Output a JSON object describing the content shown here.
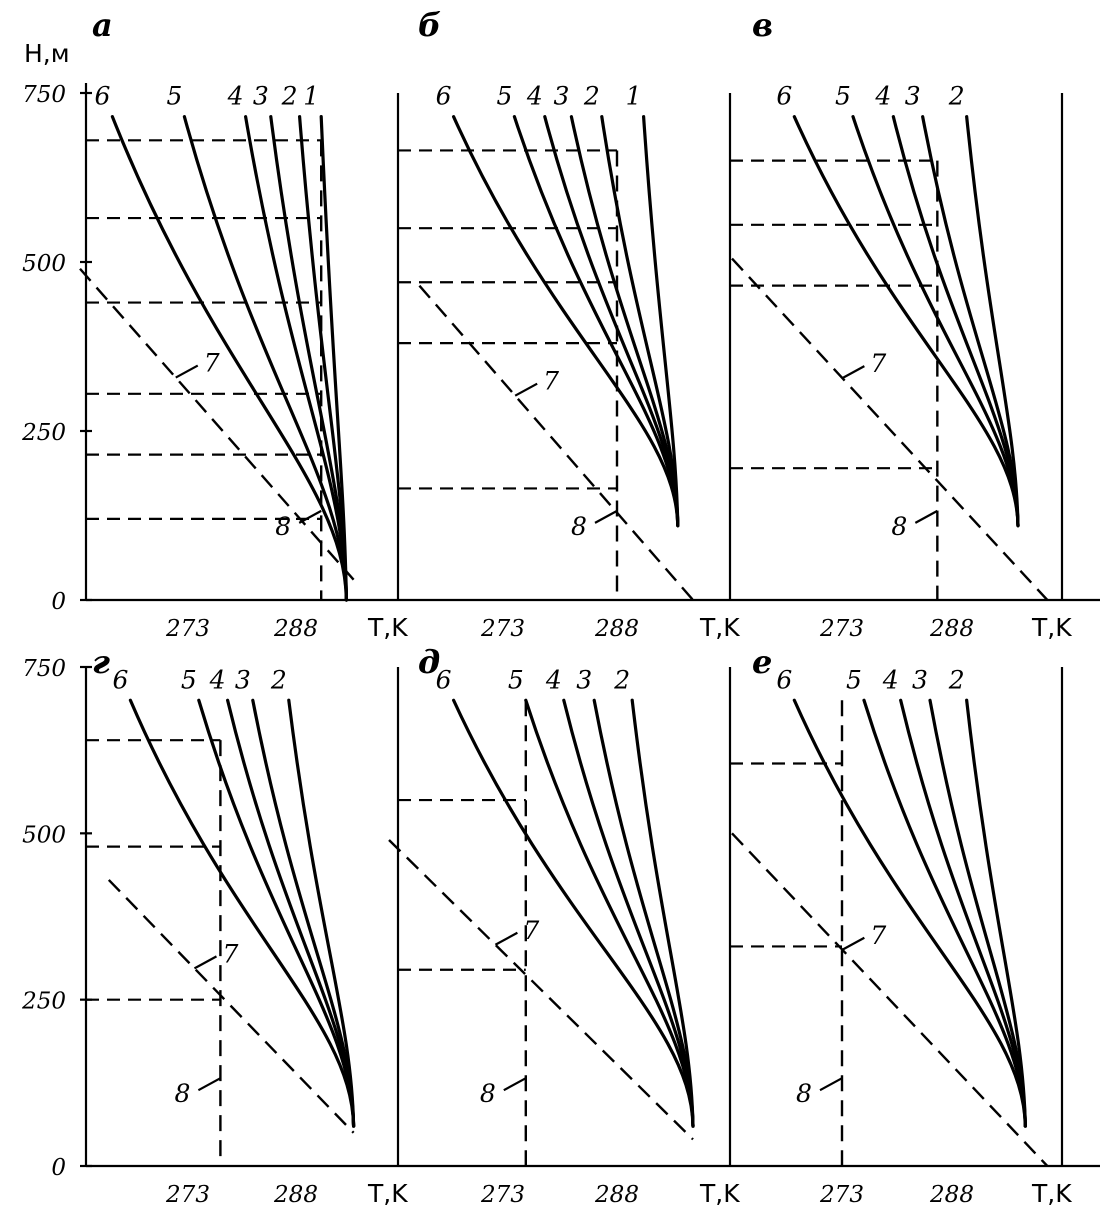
{
  "figure": {
    "ylabel": "H,м",
    "xlabel": "T,K"
  },
  "chart_data": [
    {
      "panel": "а",
      "type": "line",
      "ylabel": "H,м",
      "xlabel": "T,K",
      "x_ticks": [
        273,
        288
      ],
      "y_ticks": [
        0,
        250,
        500,
        750
      ],
      "ylim": [
        0,
        750
      ],
      "xlim": [
        258,
        300
      ],
      "surface_T": 295,
      "series": [
        {
          "name": "6",
          "start_T": 262.5,
          "top_H": 715
        },
        {
          "name": "5",
          "start_T": 272.5,
          "top_H": 715
        },
        {
          "name": "4",
          "start_T": 281,
          "top_H": 715
        },
        {
          "name": "3",
          "start_T": 284.5,
          "top_H": 715
        },
        {
          "name": "2",
          "start_T": 288.5,
          "top_H": 715
        },
        {
          "name": "1",
          "start_T": 291.5,
          "top_H": 715
        }
      ],
      "line7": {
        "name": "7",
        "x": [
          258,
          296
        ],
        "y": [
          490,
          30
        ]
      },
      "line8": {
        "name": "8",
        "x": [
          291.5,
          291.5
        ],
        "y": [
          0,
          680
        ]
      },
      "h_levels": [
        680,
        565,
        440,
        305,
        215,
        120
      ]
    },
    {
      "panel": "б",
      "type": "line",
      "x_ticks": [
        273,
        288
      ],
      "xlabel": "T,K",
      "ylim": [
        0,
        750
      ],
      "xlim": [
        258,
        300
      ],
      "surface_T": 296,
      "series": [
        {
          "name": "6",
          "start_T": 266.5,
          "top_H": 715
        },
        {
          "name": "5",
          "start_T": 274.5,
          "top_H": 715
        },
        {
          "name": "4",
          "start_T": 278.5,
          "top_H": 715
        },
        {
          "name": "3",
          "start_T": 282,
          "top_H": 715
        },
        {
          "name": "2",
          "start_T": 286,
          "top_H": 715
        },
        {
          "name": "1",
          "start_T": 291.5,
          "top_H": 715
        }
      ],
      "line7": {
        "name": "7",
        "x": [
          262,
          298
        ],
        "y": [
          465,
          0
        ]
      },
      "line8": {
        "name": "8",
        "x": [
          288,
          288
        ],
        "y": [
          0,
          665
        ]
      },
      "h_levels": [
        665,
        550,
        470,
        380,
        165
      ]
    },
    {
      "panel": "в",
      "type": "line",
      "x_ticks": [
        273,
        288
      ],
      "xlabel": "T,K",
      "ylim": [
        0,
        750
      ],
      "xlim": [
        258,
        300
      ],
      "surface_T": 297,
      "series": [
        {
          "name": "6",
          "start_T": 266.5,
          "top_H": 715
        },
        {
          "name": "5",
          "start_T": 274.5,
          "top_H": 715
        },
        {
          "name": "4",
          "start_T": 280,
          "top_H": 715
        },
        {
          "name": "3",
          "start_T": 284,
          "top_H": 715
        },
        {
          "name": "2",
          "start_T": 290,
          "top_H": 715
        }
      ],
      "line7": {
        "name": "7",
        "x": [
          258,
          301
        ],
        "y": [
          505,
          0
        ]
      },
      "line8": {
        "name": "8",
        "x": [
          286,
          286
        ],
        "y": [
          0,
          650
        ]
      },
      "h_levels": [
        650,
        555,
        465,
        195
      ]
    },
    {
      "panel": "г",
      "type": "line",
      "ylabel": "",
      "xlabel": "T,K",
      "x_ticks": [
        273,
        288
      ],
      "y_ticks": [
        0,
        250,
        500,
        750
      ],
      "ylim": [
        0,
        750
      ],
      "xlim": [
        258,
        300
      ],
      "surface_T": 296,
      "series": [
        {
          "name": "6",
          "start_T": 265,
          "top_H": 700
        },
        {
          "name": "5",
          "start_T": 274.5,
          "top_H": 700
        },
        {
          "name": "4",
          "start_T": 278.5,
          "top_H": 700
        },
        {
          "name": "3",
          "start_T": 282,
          "top_H": 700
        },
        {
          "name": "2",
          "start_T": 287,
          "top_H": 700
        }
      ],
      "line7": {
        "name": "7",
        "x": [
          262,
          296
        ],
        "y": [
          430,
          50
        ]
      },
      "line8": {
        "name": "8",
        "x": [
          277.5,
          277.5
        ],
        "y": [
          0,
          640
        ]
      },
      "h_levels": [
        640,
        480,
        250
      ]
    },
    {
      "panel": "д",
      "type": "line",
      "x_ticks": [
        273,
        288
      ],
      "xlabel": "T,K",
      "ylim": [
        0,
        750
      ],
      "xlim": [
        258,
        300
      ],
      "surface_T": 298,
      "series": [
        {
          "name": "6",
          "start_T": 266.5,
          "top_H": 700
        },
        {
          "name": "5",
          "start_T": 276,
          "top_H": 700
        },
        {
          "name": "4",
          "start_T": 281,
          "top_H": 700
        },
        {
          "name": "3",
          "start_T": 285,
          "top_H": 700
        },
        {
          "name": "2",
          "start_T": 290,
          "top_H": 700
        }
      ],
      "line7": {
        "name": "7",
        "x": [
          258,
          298
        ],
        "y": [
          490,
          40
        ]
      },
      "line8": {
        "name": "8",
        "x": [
          276,
          276
        ],
        "y": [
          0,
          700
        ]
      },
      "h_levels": [
        550,
        295
      ]
    },
    {
      "panel": "е",
      "type": "line",
      "x_ticks": [
        273,
        288
      ],
      "xlabel": "T,K",
      "ylim": [
        0,
        750
      ],
      "xlim": [
        258,
        300
      ],
      "surface_T": 298,
      "series": [
        {
          "name": "6",
          "start_T": 266.5,
          "top_H": 700
        },
        {
          "name": "5",
          "start_T": 276,
          "top_H": 700
        },
        {
          "name": "4",
          "start_T": 281,
          "top_H": 700
        },
        {
          "name": "3",
          "start_T": 285,
          "top_H": 700
        },
        {
          "name": "2",
          "start_T": 290,
          "top_H": 700
        }
      ],
      "line7": {
        "name": "7",
        "x": [
          258,
          301
        ],
        "y": [
          500,
          0
        ]
      },
      "line8": {
        "name": "8",
        "x": [
          273,
          273
        ],
        "y": [
          0,
          700
        ]
      },
      "h_levels": [
        605,
        330
      ]
    }
  ]
}
